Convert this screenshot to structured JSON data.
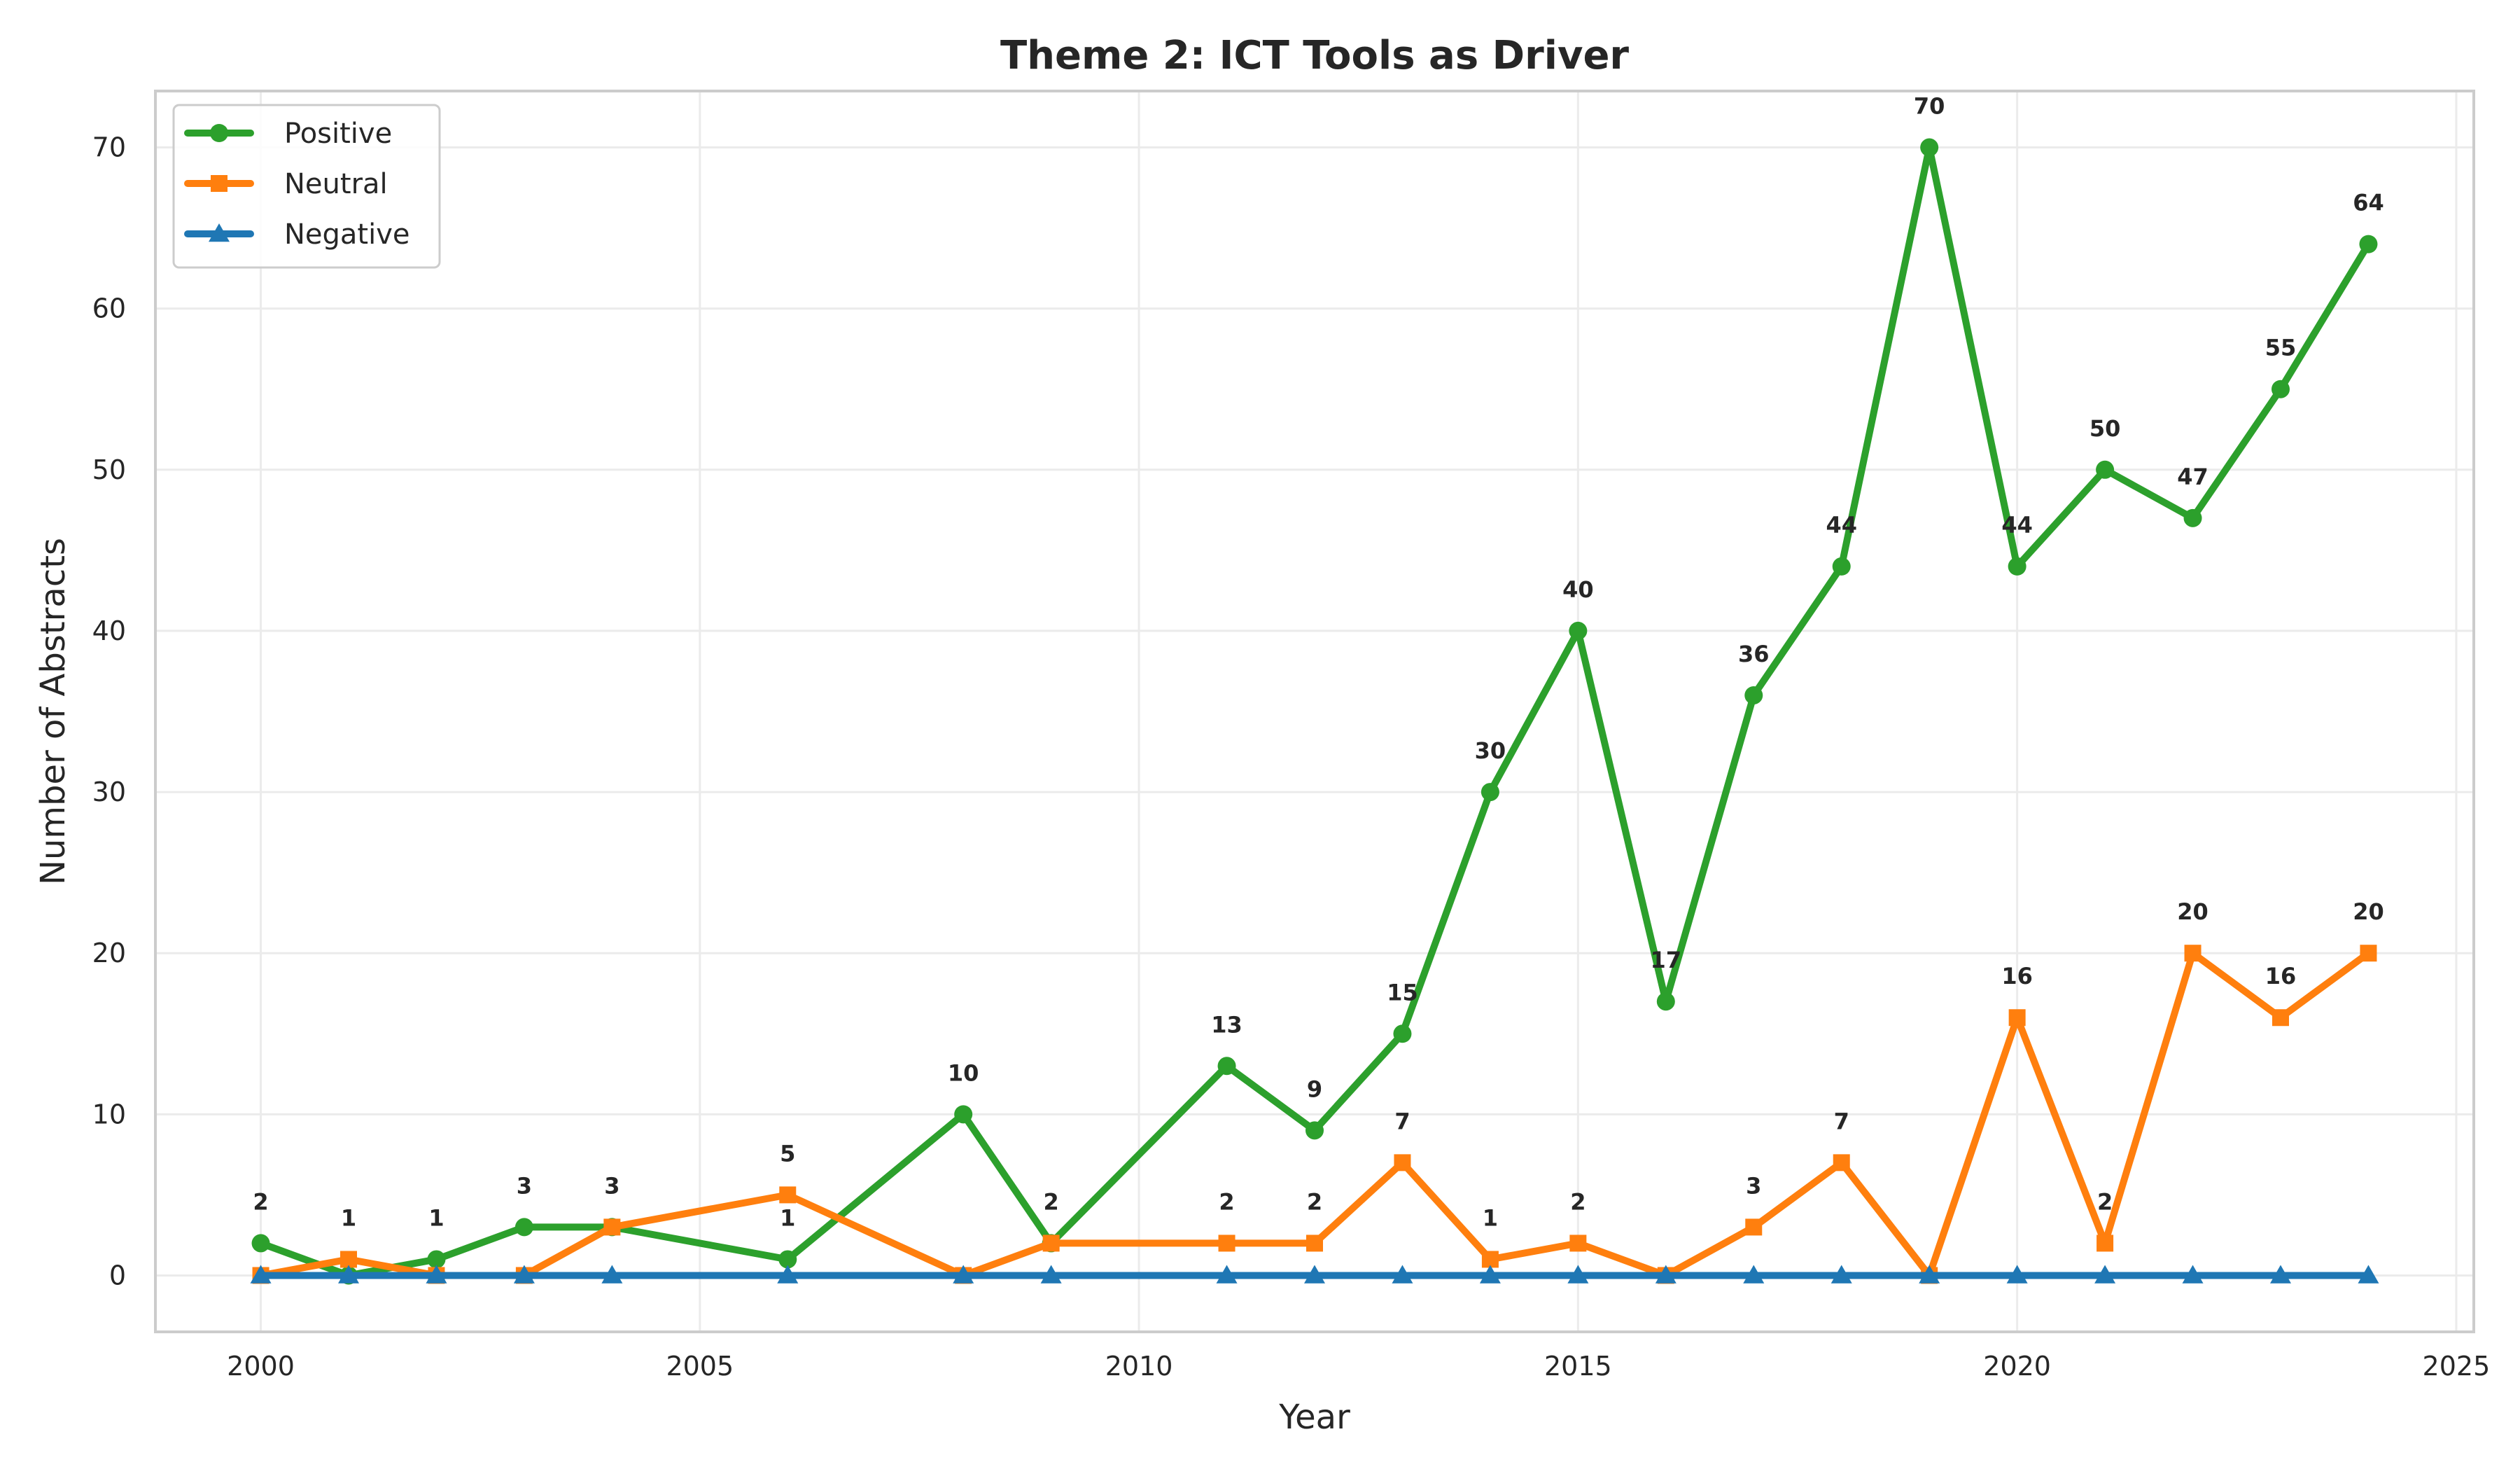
{
  "chart_data": {
    "type": "line",
    "title": "Theme 2: ICT Tools as Driver",
    "xlabel": "Year",
    "ylabel": "Number of Abstracts",
    "xlim": [
      1998.8,
      2025.2
    ],
    "ylim": [
      -3.5,
      73.5
    ],
    "xticks": [
      2000,
      2005,
      2010,
      2015,
      2020,
      2025
    ],
    "yticks": [
      0,
      10,
      20,
      30,
      40,
      50,
      60,
      70
    ],
    "grid": true,
    "legend_position": "top-left",
    "series": [
      {
        "name": "Positive",
        "color": "#2ca02c",
        "marker": "circle",
        "x": [
          2000,
          2001,
          2002,
          2003,
          2004,
          2006,
          2008,
          2009,
          2011,
          2012,
          2013,
          2014,
          2015,
          2016,
          2017,
          2018,
          2019,
          2020,
          2021,
          2022,
          2023,
          2024
        ],
        "values": [
          2,
          0,
          1,
          3,
          3,
          1,
          10,
          2,
          13,
          9,
          15,
          30,
          40,
          17,
          36,
          44,
          70,
          44,
          50,
          47,
          55,
          64
        ],
        "labels": [
          "2",
          "",
          "1",
          "3",
          "3",
          "1",
          "10",
          "2",
          "13",
          "9",
          "15",
          "30",
          "40",
          "17",
          "36",
          "44",
          "70",
          "44",
          "50",
          "47",
          "55",
          "64"
        ]
      },
      {
        "name": "Neutral",
        "color": "#ff7f0e",
        "marker": "square",
        "x": [
          2000,
          2001,
          2002,
          2003,
          2004,
          2006,
          2008,
          2009,
          2011,
          2012,
          2013,
          2014,
          2015,
          2016,
          2017,
          2018,
          2019,
          2020,
          2021,
          2022,
          2023,
          2024
        ],
        "values": [
          0,
          1,
          0,
          0,
          3,
          5,
          0,
          2,
          2,
          2,
          7,
          1,
          2,
          0,
          3,
          7,
          0,
          16,
          2,
          20,
          16,
          20
        ],
        "labels": [
          "",
          "1",
          "",
          "",
          "",
          "5",
          "",
          "",
          "2",
          "2",
          "7",
          "1",
          "2",
          "",
          "3",
          "7",
          "",
          "16",
          "2",
          "20",
          "16",
          "20"
        ]
      },
      {
        "name": "Negative",
        "color": "#1f77b4",
        "marker": "triangle",
        "x": [
          2000,
          2001,
          2002,
          2003,
          2004,
          2006,
          2008,
          2009,
          2011,
          2012,
          2013,
          2014,
          2015,
          2016,
          2017,
          2018,
          2019,
          2020,
          2021,
          2022,
          2023,
          2024
        ],
        "values": [
          0,
          0,
          0,
          0,
          0,
          0,
          0,
          0,
          0,
          0,
          0,
          0,
          0,
          0,
          0,
          0,
          0,
          0,
          0,
          0,
          0,
          0
        ],
        "labels": []
      }
    ]
  }
}
